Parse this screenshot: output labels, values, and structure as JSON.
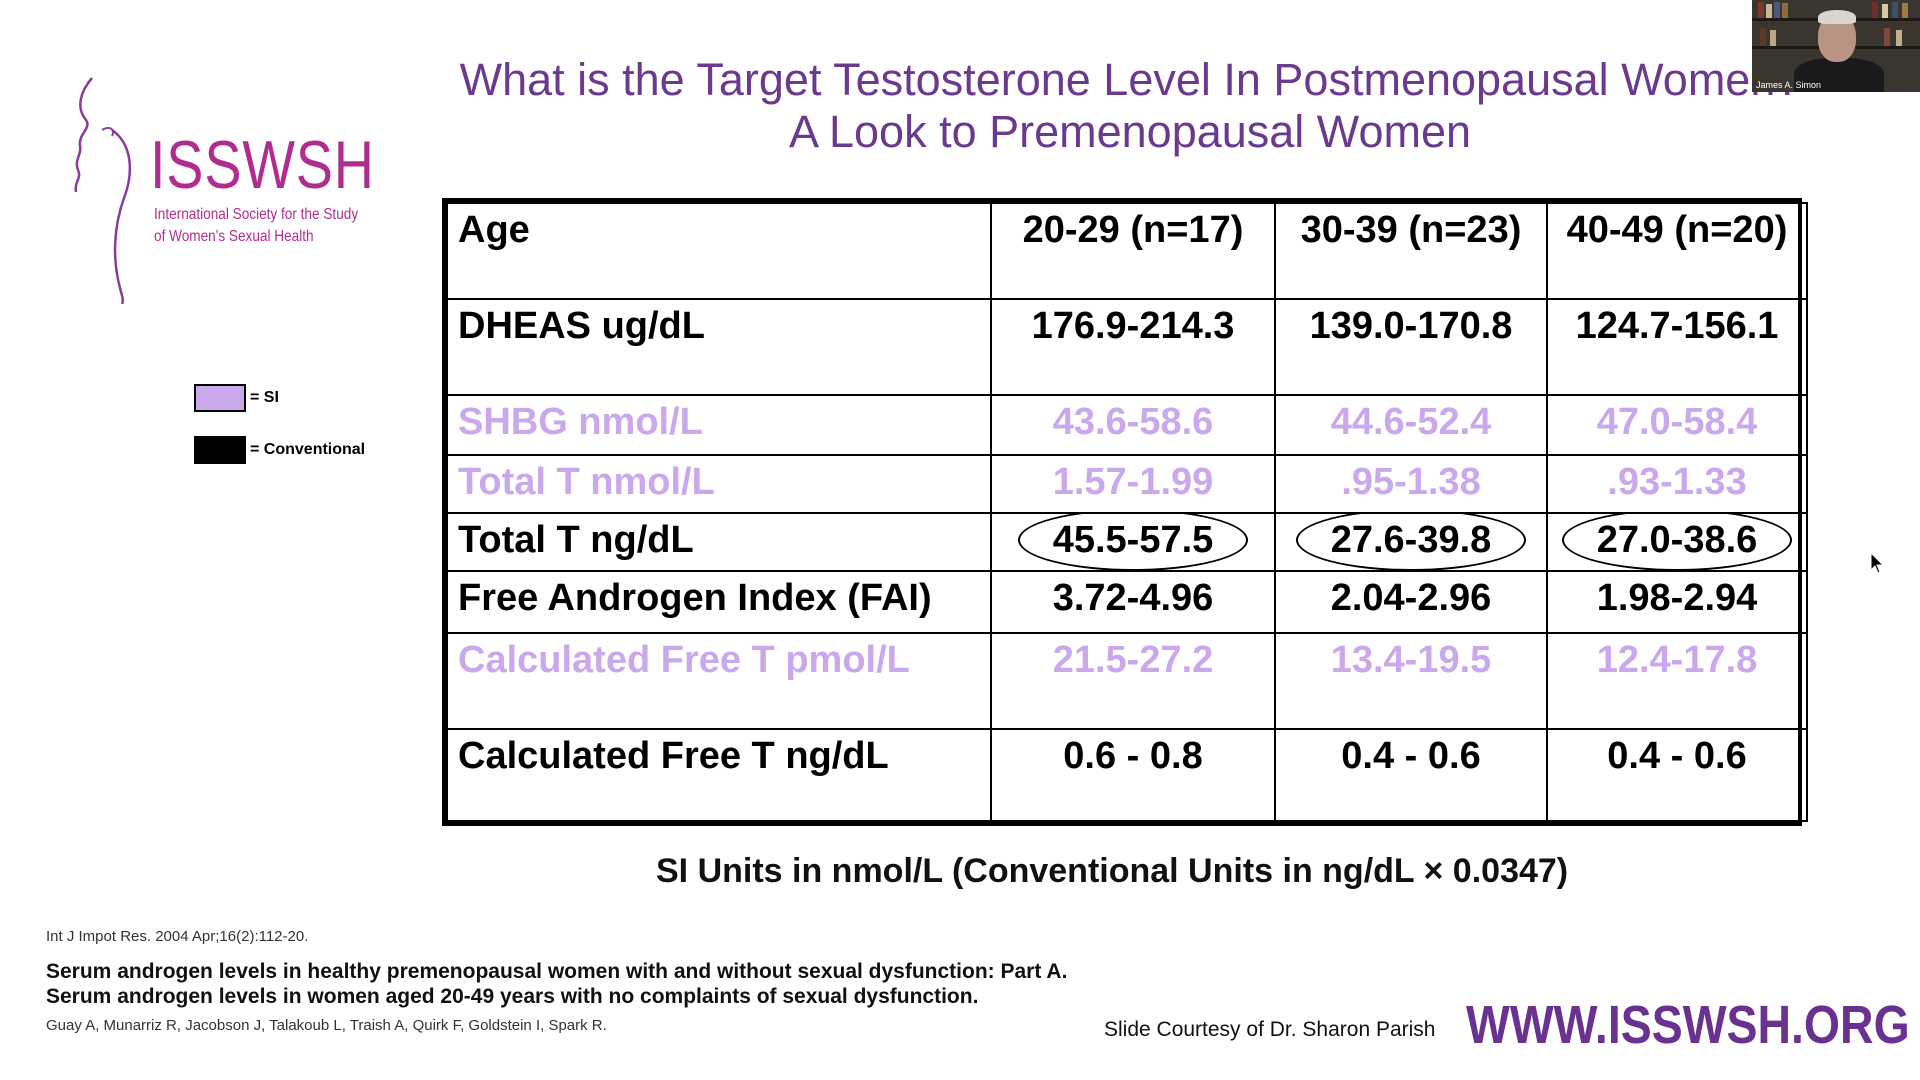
{
  "slide": {
    "title_line1": "What is the Target Testosterone Level In Postmenopausal Women?",
    "title_line2": "A Look to Premenopausal Women"
  },
  "logo": {
    "name": "ISSWSH",
    "subtitle_line1": "International Society for the Study",
    "subtitle_line2": "of Women's Sexual Health",
    "color": "#b02d8f"
  },
  "legend": [
    {
      "label": "= SI",
      "color": "#c9a8ec"
    },
    {
      "label": "= Conventional",
      "color": "#000000"
    }
  ],
  "table": {
    "header": [
      "Age",
      "20-29 (n=17)",
      "30-39 (n=23)",
      "40-49 (n=20)"
    ],
    "rows": [
      {
        "label": "DHEAS ug/dL",
        "values": [
          "176.9-214.3",
          "139.0-170.8",
          "124.7-156.1"
        ],
        "unit_type": "conventional"
      },
      {
        "label": "SHBG nmol/L",
        "values": [
          "43.6-58.6",
          "44.6-52.4",
          "47.0-58.4"
        ],
        "unit_type": "si"
      },
      {
        "label": "Total T nmol/L",
        "values": [
          "1.57-1.99",
          ".95-1.38",
          ".93-1.33"
        ],
        "unit_type": "si"
      },
      {
        "label": "Total T ng/dL",
        "values": [
          "45.5-57.5",
          "27.6-39.8",
          "27.0-38.6"
        ],
        "unit_type": "conventional",
        "circled": true
      },
      {
        "label": "Free Androgen Index (FAI)",
        "values": [
          "3.72-4.96",
          "2.04-2.96",
          "1.98-2.94"
        ],
        "unit_type": "conventional"
      },
      {
        "label": "Calculated Free T pmol/L",
        "values": [
          "21.5-27.2",
          "13.4-19.5",
          "12.4-17.8"
        ],
        "unit_type": "si"
      },
      {
        "label": "Calculated Free T ng/dL",
        "values": [
          "0.6 - 0.8",
          "0.4 - 0.6",
          "0.4 - 0.6"
        ],
        "unit_type": "conventional"
      }
    ]
  },
  "note": "SI Units in nmol/L (Conventional Units in ng/dL × 0.0347)",
  "citation": {
    "journal": "Int J Impot Res. 2004 Apr;16(2):112-20.",
    "title": "Serum androgen levels in healthy premenopausal women with and without sexual dysfunction: Part A. Serum androgen levels in women aged 20-49 years with no complaints of sexual dysfunction.",
    "authors": "Guay A, Munarriz R, Jacobson J, Talakoub L, Traish A, Quirk F, Goldstein I, Spark R."
  },
  "footer": {
    "courtesy": "Slide Courtesy of Dr. Sharon Parish",
    "url": "WWW.ISSWSH.ORG"
  },
  "webcam": {
    "participant_name": "James A. Simon"
  },
  "colors": {
    "title": "#6a3a8f",
    "si": "#c9a8ec",
    "url": "#6a3290"
  }
}
